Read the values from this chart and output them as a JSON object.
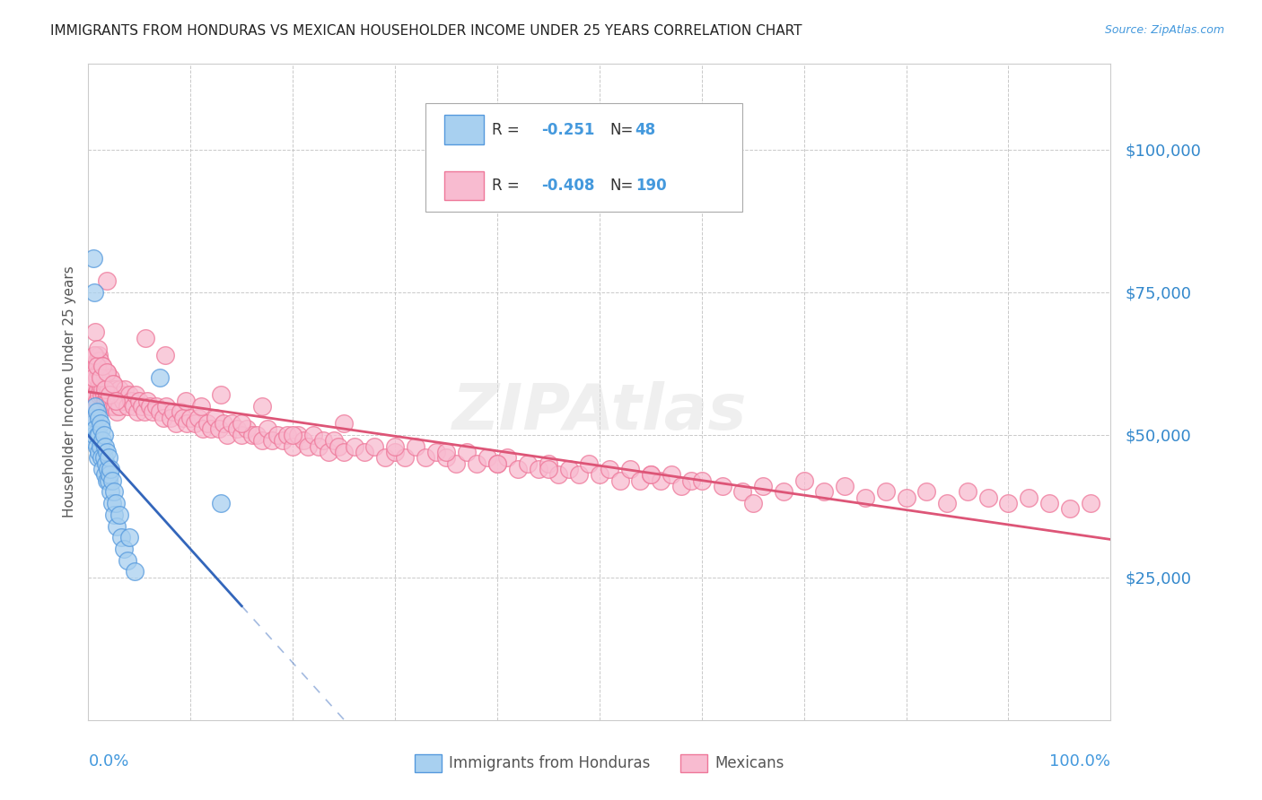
{
  "title": "IMMIGRANTS FROM HONDURAS VS MEXICAN HOUSEHOLDER INCOME UNDER 25 YEARS CORRELATION CHART",
  "source": "Source: ZipAtlas.com",
  "ylabel": "Householder Income Under 25 years",
  "ytick_labels": [
    "$25,000",
    "$50,000",
    "$75,000",
    "$100,000"
  ],
  "ytick_values": [
    25000,
    50000,
    75000,
    100000
  ],
  "ylim": [
    0,
    115000
  ],
  "xlim": [
    0.0,
    1.0
  ],
  "legend_label1": "Immigrants from Honduras",
  "legend_label2": "Mexicans",
  "R1": -0.251,
  "N1": 48,
  "R2": -0.408,
  "N2": 190,
  "color_honduras_fill": "#A8D0F0",
  "color_honduras_edge": "#5599DD",
  "color_mexico_fill": "#F8BBD0",
  "color_mexico_edge": "#EE7799",
  "color_line_honduras": "#3366BB",
  "color_line_mexico": "#DD5577",
  "color_axis_labels": "#4499DD",
  "color_right_labels": "#3388CC",
  "background_color": "#FFFFFF",
  "grid_color": "#BBBBBB",
  "honduras_x": [
    0.005,
    0.005,
    0.006,
    0.006,
    0.007,
    0.007,
    0.008,
    0.008,
    0.009,
    0.009,
    0.01,
    0.01,
    0.01,
    0.012,
    0.012,
    0.013,
    0.013,
    0.014,
    0.014,
    0.015,
    0.015,
    0.016,
    0.016,
    0.017,
    0.018,
    0.018,
    0.019,
    0.02,
    0.02,
    0.021,
    0.022,
    0.022,
    0.023,
    0.023,
    0.025,
    0.025,
    0.027,
    0.028,
    0.03,
    0.032,
    0.035,
    0.038,
    0.04,
    0.045,
    0.005,
    0.006,
    0.13,
    0.07
  ],
  "honduras_y": [
    52000,
    49000,
    53000,
    50000,
    55000,
    51000,
    54000,
    48000,
    50000,
    46000,
    53000,
    50000,
    47000,
    52000,
    48000,
    51000,
    46000,
    49000,
    44000,
    50000,
    46000,
    48000,
    43000,
    45000,
    47000,
    42000,
    44000,
    46000,
    42000,
    43000,
    44000,
    40000,
    42000,
    38000,
    40000,
    36000,
    38000,
    34000,
    36000,
    32000,
    30000,
    28000,
    32000,
    26000,
    81000,
    75000,
    38000,
    60000
  ],
  "mexico_x": [
    0.003,
    0.004,
    0.004,
    0.005,
    0.005,
    0.005,
    0.006,
    0.006,
    0.006,
    0.007,
    0.007,
    0.007,
    0.008,
    0.008,
    0.008,
    0.009,
    0.009,
    0.01,
    0.01,
    0.01,
    0.011,
    0.011,
    0.012,
    0.012,
    0.013,
    0.013,
    0.014,
    0.014,
    0.015,
    0.015,
    0.016,
    0.016,
    0.017,
    0.017,
    0.018,
    0.018,
    0.019,
    0.019,
    0.02,
    0.02,
    0.022,
    0.022,
    0.024,
    0.024,
    0.026,
    0.026,
    0.028,
    0.028,
    0.03,
    0.03,
    0.032,
    0.034,
    0.036,
    0.038,
    0.04,
    0.042,
    0.044,
    0.046,
    0.048,
    0.05,
    0.052,
    0.055,
    0.058,
    0.06,
    0.063,
    0.066,
    0.07,
    0.073,
    0.076,
    0.08,
    0.083,
    0.086,
    0.09,
    0.093,
    0.096,
    0.1,
    0.104,
    0.108,
    0.112,
    0.116,
    0.12,
    0.124,
    0.128,
    0.132,
    0.136,
    0.14,
    0.145,
    0.15,
    0.155,
    0.16,
    0.165,
    0.17,
    0.175,
    0.18,
    0.185,
    0.19,
    0.195,
    0.2,
    0.205,
    0.21,
    0.215,
    0.22,
    0.225,
    0.23,
    0.235,
    0.24,
    0.245,
    0.25,
    0.26,
    0.27,
    0.28,
    0.29,
    0.3,
    0.31,
    0.32,
    0.33,
    0.34,
    0.35,
    0.36,
    0.37,
    0.38,
    0.39,
    0.4,
    0.41,
    0.42,
    0.43,
    0.44,
    0.45,
    0.46,
    0.47,
    0.48,
    0.49,
    0.5,
    0.51,
    0.52,
    0.53,
    0.54,
    0.55,
    0.56,
    0.57,
    0.58,
    0.59,
    0.6,
    0.62,
    0.64,
    0.66,
    0.68,
    0.7,
    0.72,
    0.74,
    0.76,
    0.78,
    0.8,
    0.82,
    0.84,
    0.86,
    0.88,
    0.9,
    0.92,
    0.94,
    0.96,
    0.98,
    0.005,
    0.006,
    0.007,
    0.008,
    0.009,
    0.012,
    0.014,
    0.016,
    0.018,
    0.021,
    0.024,
    0.027,
    0.018,
    0.056,
    0.075,
    0.095,
    0.11,
    0.13,
    0.15,
    0.17,
    0.2,
    0.25,
    0.3,
    0.35,
    0.4,
    0.45,
    0.55,
    0.65
  ],
  "mexico_y": [
    55000,
    58000,
    54000,
    60000,
    57000,
    53000,
    62000,
    59000,
    55000,
    64000,
    61000,
    57000,
    63000,
    60000,
    56000,
    62000,
    58000,
    64000,
    61000,
    57000,
    63000,
    59000,
    61000,
    58000,
    60000,
    57000,
    62000,
    58000,
    61000,
    57000,
    60000,
    56000,
    59000,
    56000,
    61000,
    57000,
    60000,
    56000,
    58000,
    55000,
    60000,
    56000,
    59000,
    55000,
    58000,
    55000,
    57000,
    54000,
    58000,
    55000,
    57000,
    56000,
    58000,
    55000,
    57000,
    56000,
    55000,
    57000,
    54000,
    56000,
    55000,
    54000,
    56000,
    55000,
    54000,
    55000,
    54000,
    53000,
    55000,
    53000,
    54000,
    52000,
    54000,
    53000,
    52000,
    53000,
    52000,
    53000,
    51000,
    52000,
    51000,
    53000,
    51000,
    52000,
    50000,
    52000,
    51000,
    50000,
    51000,
    50000,
    50000,
    49000,
    51000,
    49000,
    50000,
    49000,
    50000,
    48000,
    50000,
    49000,
    48000,
    50000,
    48000,
    49000,
    47000,
    49000,
    48000,
    47000,
    48000,
    47000,
    48000,
    46000,
    47000,
    46000,
    48000,
    46000,
    47000,
    46000,
    45000,
    47000,
    45000,
    46000,
    45000,
    46000,
    44000,
    45000,
    44000,
    45000,
    43000,
    44000,
    43000,
    45000,
    43000,
    44000,
    42000,
    44000,
    42000,
    43000,
    42000,
    43000,
    41000,
    42000,
    42000,
    41000,
    40000,
    41000,
    40000,
    42000,
    40000,
    41000,
    39000,
    40000,
    39000,
    40000,
    38000,
    40000,
    39000,
    38000,
    39000,
    38000,
    37000,
    38000,
    60000,
    64000,
    68000,
    62000,
    65000,
    60000,
    62000,
    58000,
    61000,
    57000,
    59000,
    56000,
    77000,
    67000,
    64000,
    56000,
    55000,
    57000,
    52000,
    55000,
    50000,
    52000,
    48000,
    47000,
    45000,
    44000,
    43000,
    38000
  ]
}
